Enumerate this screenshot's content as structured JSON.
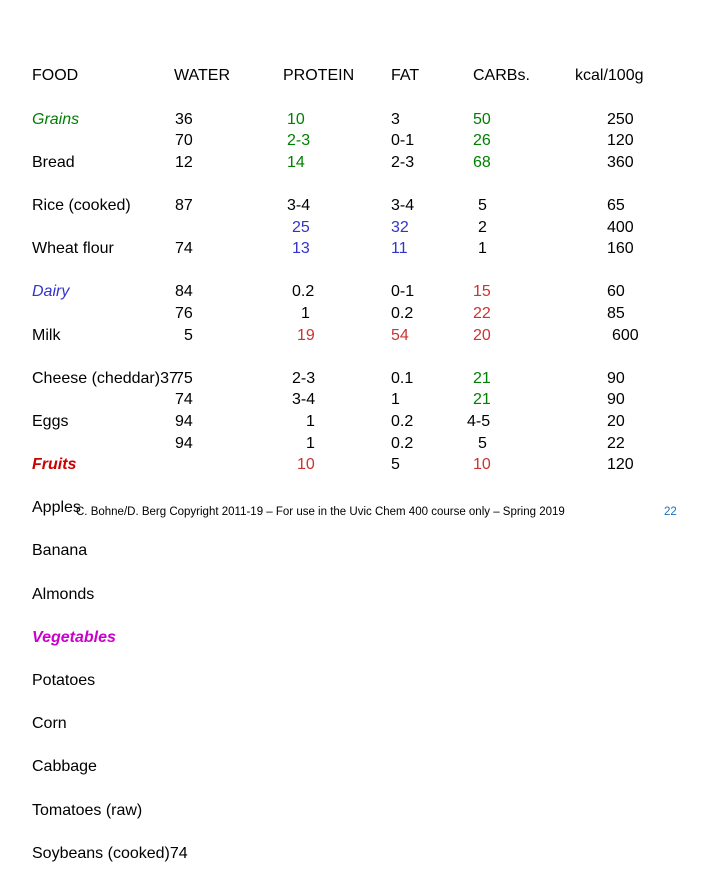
{
  "headers": {
    "food": "FOOD",
    "water": "WATER",
    "protein": "PROTEIN",
    "fat": "FAT",
    "carbs": "CARBs.",
    "kcal": "kcal/100g"
  },
  "categories": {
    "grains": "Grains",
    "dairy": "Dairy",
    "fruits": "Fruits",
    "vegetables": "Vegetables"
  },
  "food_lines": [
    "Bread",
    "Rice (cooked)",
    "Wheat flour",
    "Milk",
    "Cheese (cheddar)37",
    "Eggs",
    "Apples",
    "Banana",
    "Almonds",
    "Potatoes",
    "Corn",
    "Cabbage",
    "Tomatoes (raw)",
    "Soybeans (cooked)74"
  ],
  "water": [
    "36",
    "70",
    "12",
    "87",
    "74",
    "84",
    "76",
    "5",
    "75",
    "74",
    "94",
    "94"
  ],
  "protein": {
    "grains": [
      "10",
      "2-3",
      "14"
    ],
    "dairy": [
      "3-4",
      "25",
      "13"
    ],
    "fruits": [
      "0.2",
      "1",
      "19"
    ],
    "vegetables": [
      "2-3",
      "3-4",
      "1",
      "1",
      "10"
    ]
  },
  "fat": {
    "grains": [
      "3",
      "0-1",
      "2-3"
    ],
    "dairy": [
      "3-4",
      "32",
      "11"
    ],
    "fruits": [
      "0-1",
      "0.2",
      "54"
    ],
    "vegetables": [
      "0.1",
      "1",
      "0.2",
      "0.2",
      "5"
    ]
  },
  "carbs": {
    "grains": [
      "50",
      "26",
      "68"
    ],
    "dairy": [
      "5",
      "2",
      "1"
    ],
    "fruits": [
      "15",
      "22",
      "20"
    ],
    "vegetables": [
      "21",
      "21",
      "4-5",
      "5",
      "10"
    ]
  },
  "kcal": {
    "grains": [
      "250",
      "120",
      "360"
    ],
    "dairy": [
      "65",
      "400",
      "160"
    ],
    "fruits": [
      "60",
      "85",
      "600"
    ],
    "vegetables": [
      "90",
      "90",
      "20",
      "22",
      "120"
    ]
  },
  "footer": "C. Bohne/D. Berg Copyright 2011-19 – For use in the Uvic Chem 400 course only – Spring 2019",
  "page_number": "22",
  "colors": {
    "grains": "#008000",
    "dairy": "#3333cc",
    "fruits": "#cc0000",
    "vegetables": "#cc00cc"
  }
}
